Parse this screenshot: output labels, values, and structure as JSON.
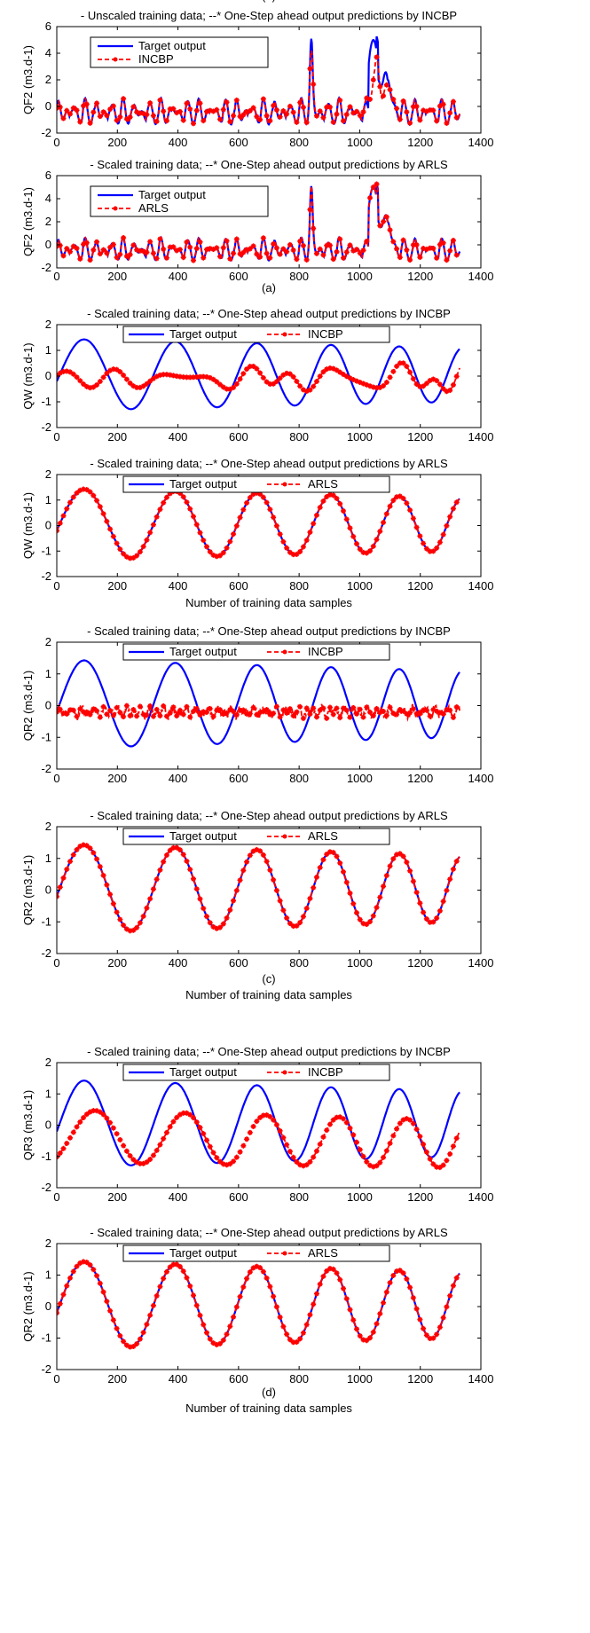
{
  "chart_data": [
    {
      "type": "line",
      "title": "- Unscaled training data; --* One-Step ahead output predictions by INCBP",
      "ylabel": "QF2 (m3.d-1)",
      "xlabel": "",
      "xlim": [
        0,
        1400
      ],
      "ylim": [
        -2,
        6
      ],
      "xticks": [
        0,
        200,
        400,
        600,
        800,
        1000,
        1200,
        1400
      ],
      "yticks": [
        -2,
        0,
        2,
        4,
        6
      ],
      "legend_position": "top-left",
      "signal": {
        "kind": "qf2",
        "pred": "incbp"
      },
      "series": [
        {
          "name": "Target output",
          "color": "#0000ff",
          "style": "solid"
        },
        {
          "name": "INCBP",
          "color": "#ff0000",
          "style": "dashed-star"
        }
      ]
    },
    {
      "type": "line",
      "title": "- Scaled training data; --* One-Step ahead output predictions by ARLS",
      "ylabel": "QF2 (m3.d-1)",
      "xlabel": "",
      "caption": "(a)",
      "xlim": [
        0,
        1400
      ],
      "ylim": [
        -2,
        6
      ],
      "xticks": [
        0,
        200,
        400,
        600,
        800,
        1000,
        1200,
        1400
      ],
      "yticks": [
        -2,
        0,
        2,
        4,
        6
      ],
      "legend_position": "top-left",
      "signal": {
        "kind": "qf2",
        "pred": "arls"
      },
      "series": [
        {
          "name": "Target output",
          "color": "#0000ff",
          "style": "solid"
        },
        {
          "name": "ARLS",
          "color": "#ff0000",
          "style": "dashed-star"
        }
      ]
    },
    {
      "type": "line",
      "title": "- Scaled training data; --* One-Step ahead output predictions by INCBP",
      "ylabel": "QW (m3.d-1)",
      "xlabel": "",
      "xlim": [
        0,
        1400
      ],
      "ylim": [
        -2,
        2
      ],
      "xticks": [
        0,
        200,
        400,
        600,
        800,
        1000,
        1200,
        1400
      ],
      "yticks": [
        -2,
        -1,
        0,
        1,
        2
      ],
      "legend_position": "top",
      "signal": {
        "kind": "chirp",
        "pred": "incbp_qw"
      },
      "series": [
        {
          "name": "Target output",
          "color": "#0000ff",
          "style": "solid"
        },
        {
          "name": "INCBP",
          "color": "#ff0000",
          "style": "dashed-star"
        }
      ]
    },
    {
      "type": "line",
      "title": "- Scaled training data; --* One-Step ahead output predictions by ARLS",
      "ylabel": "QW (m3.d-1)",
      "xlabel": "Number of training data samples",
      "caption": "(b)",
      "xlim": [
        0,
        1400
      ],
      "ylim": [
        -2,
        2
      ],
      "xticks": [
        0,
        200,
        400,
        600,
        800,
        1000,
        1200,
        1400
      ],
      "yticks": [
        -2,
        -1,
        0,
        1,
        2
      ],
      "legend_position": "top",
      "signal": {
        "kind": "chirp",
        "pred": "arls"
      },
      "series": [
        {
          "name": "Target output",
          "color": "#0000ff",
          "style": "solid"
        },
        {
          "name": "ARLS",
          "color": "#ff0000",
          "style": "dashed-star"
        }
      ]
    },
    {
      "type": "line",
      "title": "- Scaled training data; --* One-Step ahead output predictions by INCBP",
      "ylabel": "QR2 (m3.d-1)",
      "xlabel": "",
      "xlim": [
        0,
        1400
      ],
      "ylim": [
        -2,
        2
      ],
      "xticks": [
        0,
        200,
        400,
        600,
        800,
        1000,
        1200,
        1400
      ],
      "yticks": [
        -2,
        -1,
        0,
        1,
        2
      ],
      "legend_position": "top",
      "signal": {
        "kind": "chirp",
        "pred": "incbp_qr2"
      },
      "series": [
        {
          "name": "Target output",
          "color": "#0000ff",
          "style": "solid"
        },
        {
          "name": "INCBP",
          "color": "#ff0000",
          "style": "dashed-star"
        }
      ]
    },
    {
      "type": "line",
      "title": "- Scaled training data; --* One-Step ahead output predictions by ARLS",
      "ylabel": "QR2 (m3.d-1)",
      "xlabel": "Number of training data samples",
      "caption": "(c)",
      "xlim": [
        0,
        1400
      ],
      "ylim": [
        -2,
        2
      ],
      "xticks": [
        0,
        200,
        400,
        600,
        800,
        1000,
        1200,
        1400
      ],
      "yticks": [
        -2,
        -1,
        0,
        1,
        2
      ],
      "legend_position": "top",
      "signal": {
        "kind": "chirp",
        "pred": "arls"
      },
      "series": [
        {
          "name": "Target output",
          "color": "#0000ff",
          "style": "solid"
        },
        {
          "name": "ARLS",
          "color": "#ff0000",
          "style": "dashed-star"
        }
      ]
    },
    {
      "type": "line",
      "title": "- Scaled training data; --* One-Step ahead output predictions by INCBP",
      "ylabel": "QR3 (m3.d-1)",
      "xlabel": "",
      "xlim": [
        0,
        1400
      ],
      "ylim": [
        -2,
        2
      ],
      "xticks": [
        0,
        200,
        400,
        600,
        800,
        1000,
        1200,
        1400
      ],
      "yticks": [
        -2,
        -1,
        0,
        1,
        2
      ],
      "legend_position": "top",
      "signal": {
        "kind": "chirp",
        "pred": "incbp_qr3"
      },
      "series": [
        {
          "name": "Target output",
          "color": "#0000ff",
          "style": "solid"
        },
        {
          "name": "INCBP",
          "color": "#ff0000",
          "style": "dashed-star"
        }
      ]
    },
    {
      "type": "line",
      "title": "- Scaled training data; --* One-Step ahead output predictions by ARLS",
      "ylabel": "QR2 (m3.d-1)",
      "xlabel": "Number of training data samples",
      "caption": "(d)",
      "xlim": [
        0,
        1400
      ],
      "ylim": [
        -2,
        2
      ],
      "xticks": [
        0,
        200,
        400,
        600,
        800,
        1000,
        1200,
        1400
      ],
      "yticks": [
        -2,
        -1,
        0,
        1,
        2
      ],
      "legend_position": "top",
      "signal": {
        "kind": "chirp",
        "pred": "arls"
      },
      "series": [
        {
          "name": "Target output",
          "color": "#0000ff",
          "style": "solid"
        },
        {
          "name": "ARLS",
          "color": "#ff0000",
          "style": "dashed-star"
        }
      ]
    }
  ],
  "colors": {
    "target": "#0000ff",
    "prediction": "#ff0000"
  }
}
